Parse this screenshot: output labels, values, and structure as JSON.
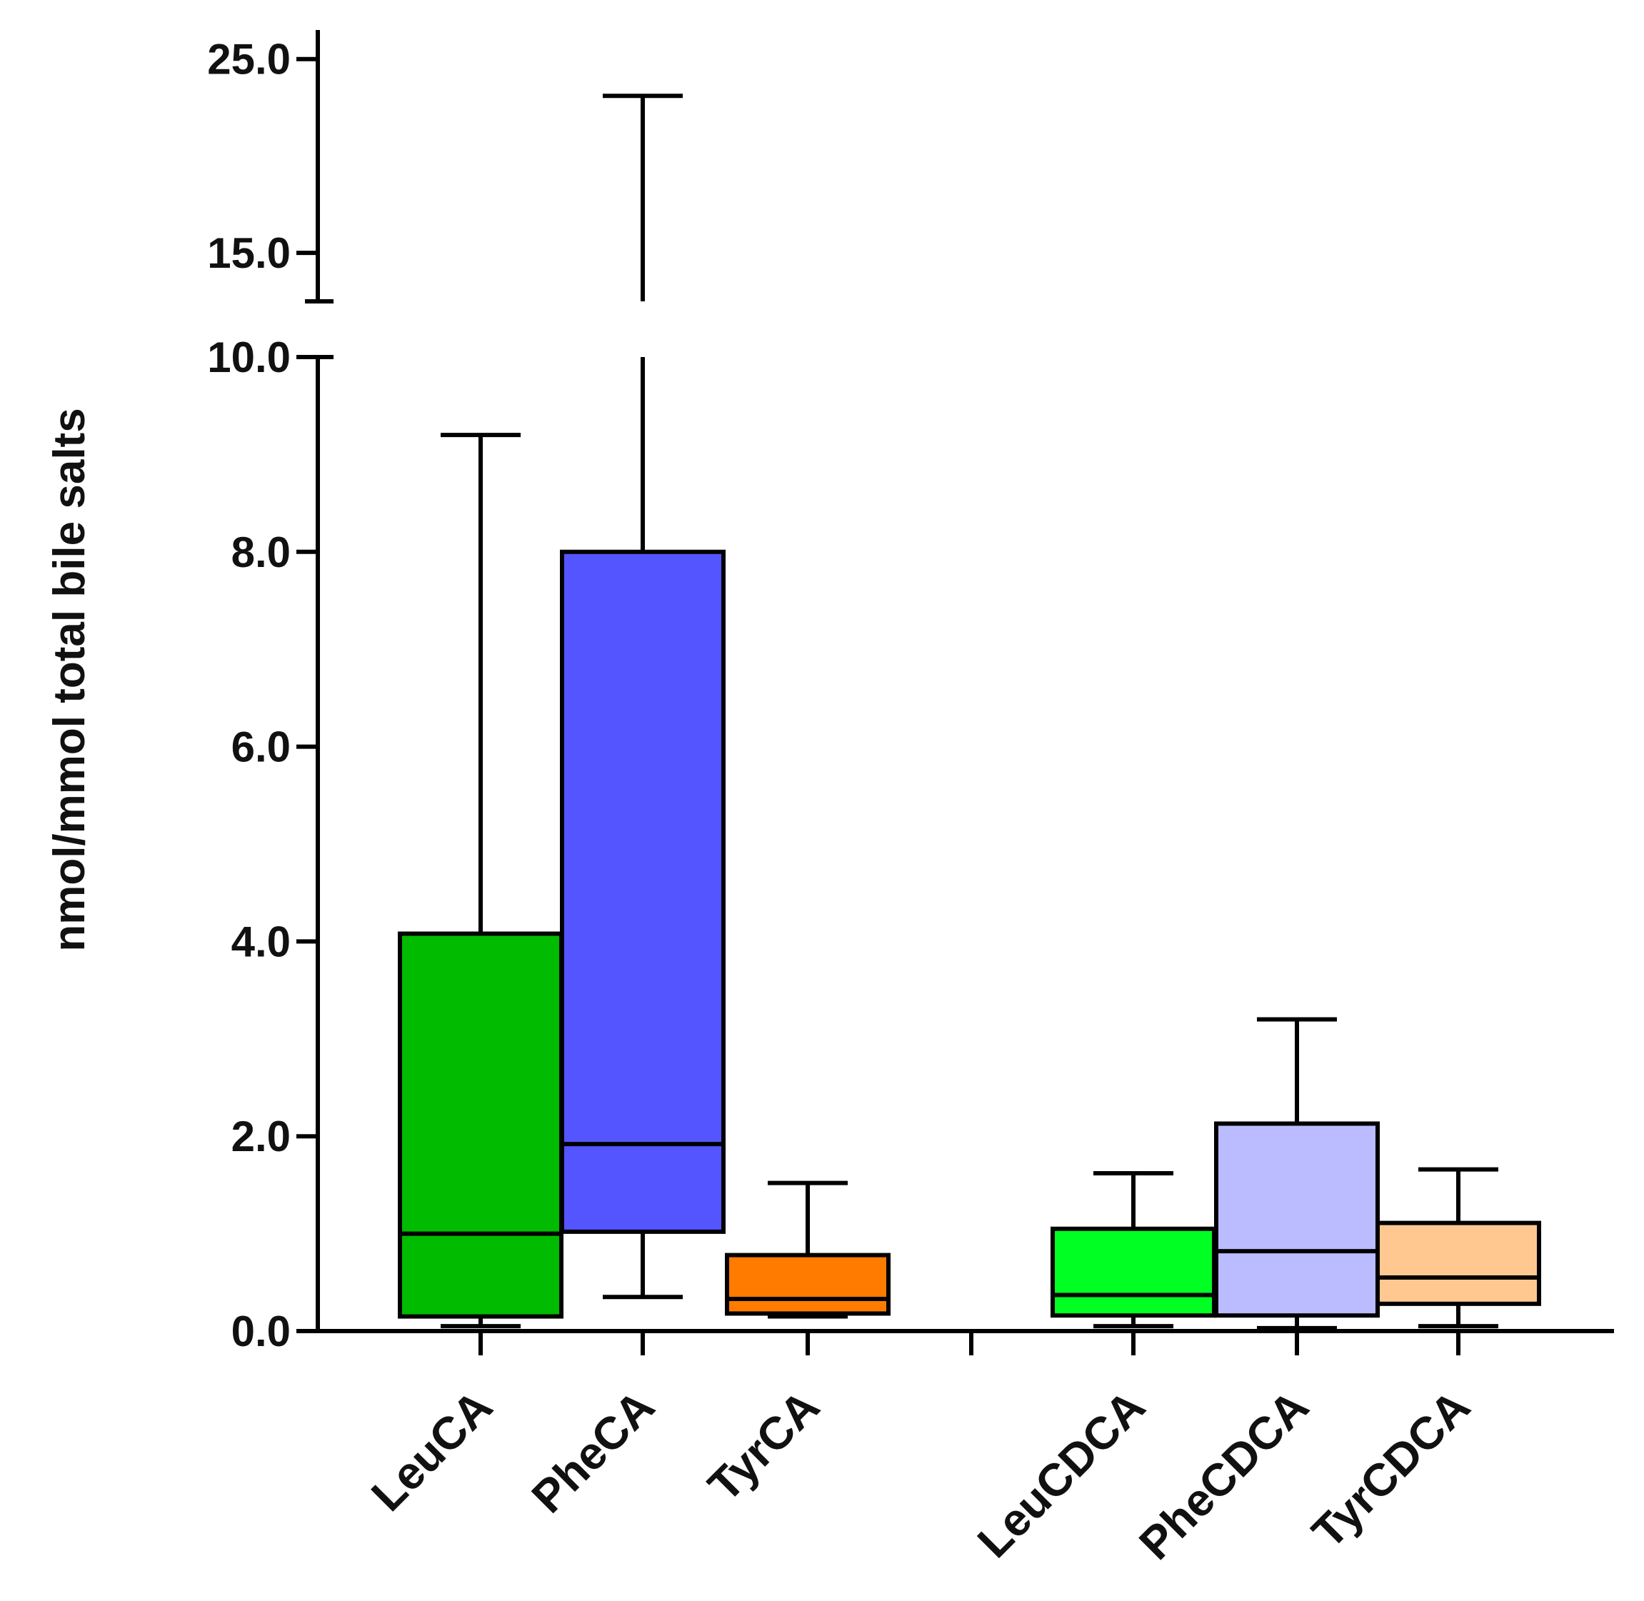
{
  "chart_data": {
    "type": "boxplot",
    "ylabel": "nmol/mmol total bile salts",
    "xlabel": "",
    "y_axis": {
      "broken": true,
      "lower_segment": {
        "range": [
          0,
          10
        ],
        "ticks": [
          0,
          2,
          4,
          6,
          8,
          10
        ],
        "tick_labels": [
          "0.0",
          "2.0",
          "4.0",
          "6.0",
          "8.0",
          "10.0"
        ]
      },
      "upper_segment": {
        "range": [
          12.5,
          26.5
        ],
        "ticks": [
          15,
          25
        ],
        "tick_labels": [
          "15.0",
          "25.0"
        ]
      }
    },
    "categories": [
      "LeuCA",
      "PheCA",
      "TyrCA",
      "LeuCDCA",
      "PheCDCA",
      "TyrCDCA"
    ],
    "boxes": [
      {
        "name": "LeuCA",
        "color": "#00bb00",
        "min": 0.05,
        "q1": 0.15,
        "median": 1.0,
        "q3": 4.08,
        "max": 9.2
      },
      {
        "name": "PheCA",
        "color": "#5555ff",
        "min": 0.35,
        "q1": 1.02,
        "median": 1.92,
        "q3": 8.0,
        "max": 23.1
      },
      {
        "name": "TyrCA",
        "color": "#ff7b00",
        "min": 0.15,
        "q1": 0.18,
        "median": 0.33,
        "q3": 0.78,
        "max": 1.52
      },
      {
        "name": "LeuCDCA",
        "color": "#00ff22",
        "min": 0.05,
        "q1": 0.16,
        "median": 0.37,
        "q3": 1.05,
        "max": 1.62
      },
      {
        "name": "PheCDCA",
        "color": "#bbbbff",
        "min": 0.03,
        "q1": 0.16,
        "median": 0.82,
        "q3": 2.13,
        "max": 3.2
      },
      {
        "name": "TyrCDCA",
        "color": "#ffc891",
        "min": 0.05,
        "q1": 0.28,
        "median": 0.55,
        "q3": 1.11,
        "max": 1.66
      }
    ]
  }
}
